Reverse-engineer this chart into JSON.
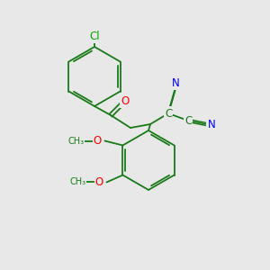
{
  "background_color": "#e8e8e8",
  "bond_color": "#1a7a1a",
  "atom_colors": {
    "N": "#0000ff",
    "O": "#ff0000",
    "Cl": "#00aa00",
    "C": "#1a7a1a"
  },
  "font_size_atom": 8.5,
  "font_size_label": 8.0
}
